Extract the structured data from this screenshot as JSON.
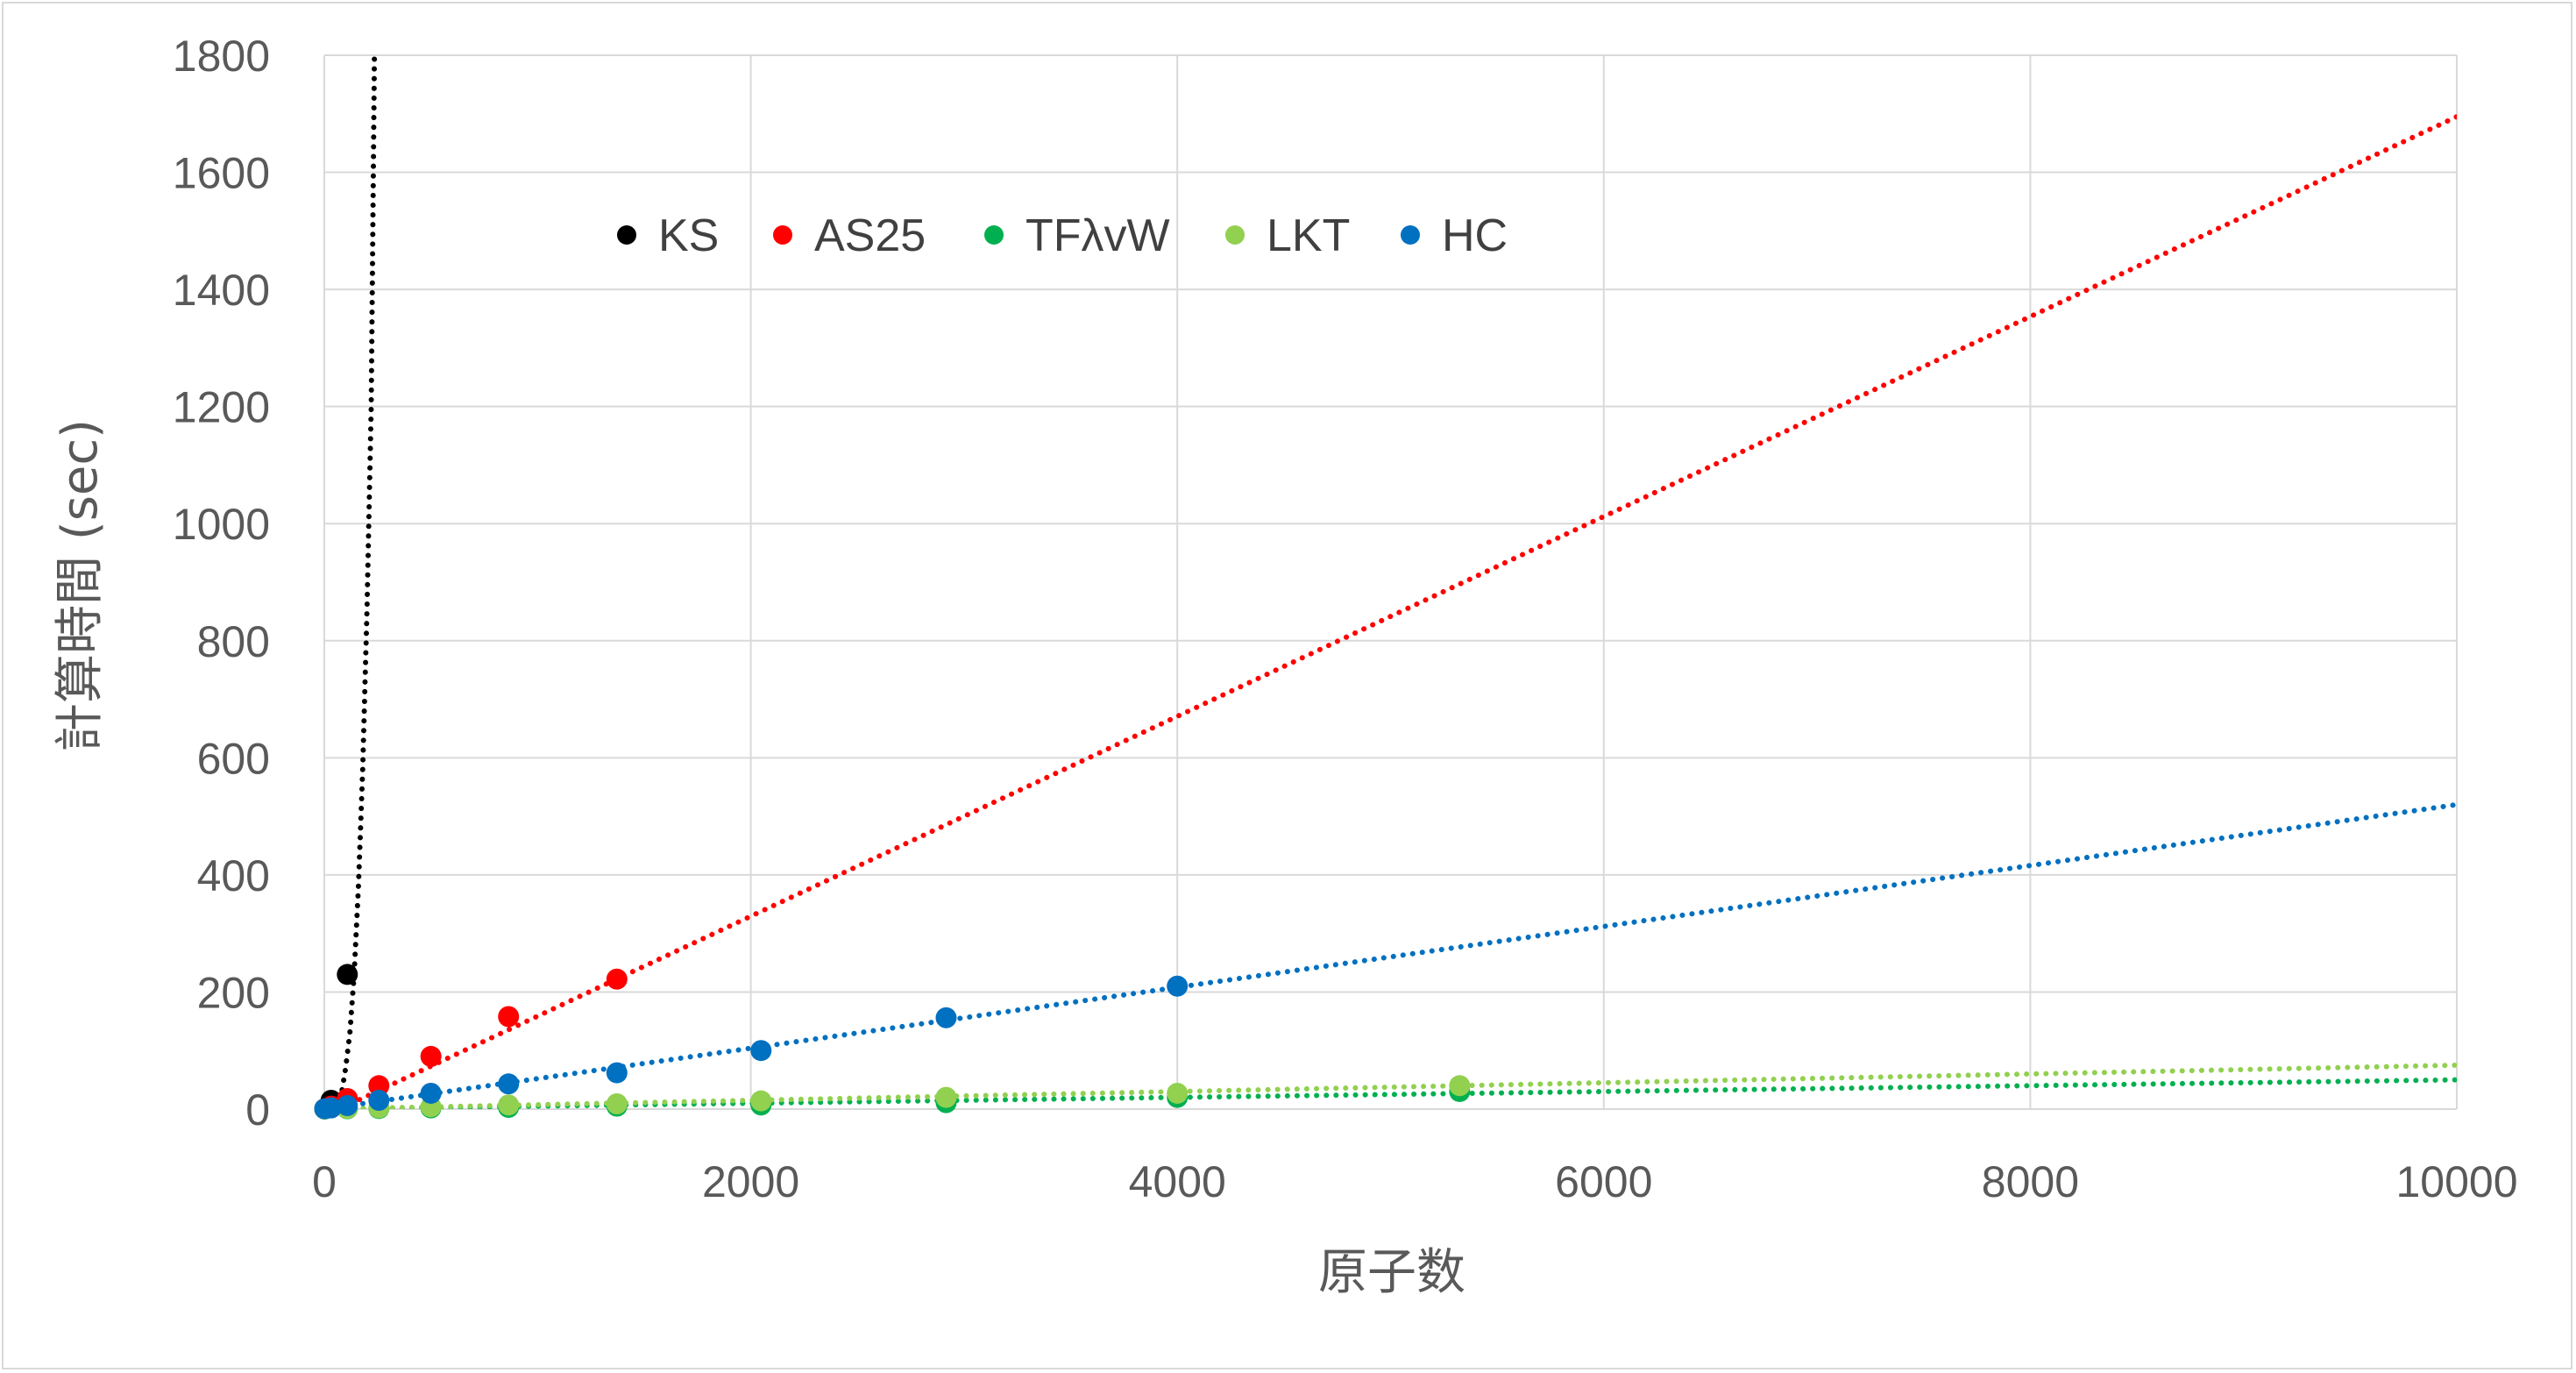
{
  "chart_data": {
    "type": "scatter",
    "title": "",
    "xlabel": "原子数",
    "ylabel": "計算時間 (sec)",
    "xlim": [
      0,
      10000
    ],
    "ylim": [
      0,
      1800
    ],
    "x_ticks": [
      "0",
      "2000",
      "4000",
      "6000",
      "8000",
      "10000"
    ],
    "y_ticks": [
      "0",
      "200",
      "400",
      "600",
      "800",
      "1000",
      "1200",
      "1400",
      "1600",
      "1800"
    ],
    "grid": true,
    "legend_position": "top-left-inside",
    "trendlines": "dotted",
    "series": [
      {
        "name": "KS",
        "color": "#000000",
        "points": [
          [
            2,
            0.5
          ],
          [
            8,
            2
          ],
          [
            32,
            15
          ],
          [
            108,
            230
          ]
        ],
        "trend": {
          "kind": "power",
          "x": [
            0,
            20,
            40,
            60,
            80,
            100,
            120,
            140,
            160,
            180,
            200,
            220,
            235
          ],
          "y": [
            0,
            0.3,
            3,
            10,
            25,
            70,
            130,
            230,
            380,
            580,
            850,
            1200,
            1800
          ]
        }
      },
      {
        "name": "AS25",
        "color": "#ff0000",
        "points": [
          [
            2,
            0.5
          ],
          [
            32,
            5
          ],
          [
            108,
            18
          ],
          [
            256,
            40
          ],
          [
            500,
            90
          ],
          [
            864,
            158
          ],
          [
            1372,
            222
          ]
        ],
        "trend": {
          "kind": "linear",
          "x": [
            0,
            10000
          ],
          "y": [
            -12,
            1695
          ]
        }
      },
      {
        "name": "TFλvW",
        "color": "#00b050",
        "points": [
          [
            2,
            0.1
          ],
          [
            108,
            0.5
          ],
          [
            256,
            1
          ],
          [
            500,
            2
          ],
          [
            864,
            3
          ],
          [
            1372,
            5
          ],
          [
            2048,
            7
          ],
          [
            2916,
            11
          ],
          [
            4000,
            20
          ],
          [
            5324,
            30
          ]
        ],
        "trend": {
          "kind": "linear",
          "x": [
            0,
            10000
          ],
          "y": [
            0,
            50
          ]
        }
      },
      {
        "name": "LKT",
        "color": "#92d050",
        "points": [
          [
            2,
            0.1
          ],
          [
            108,
            1
          ],
          [
            256,
            2
          ],
          [
            500,
            4
          ],
          [
            864,
            7
          ],
          [
            1372,
            9
          ],
          [
            2048,
            14
          ],
          [
            2916,
            20
          ],
          [
            4000,
            27
          ],
          [
            5324,
            40
          ]
        ],
        "trend": {
          "kind": "linear",
          "x": [
            0,
            10000
          ],
          "y": [
            0,
            75
          ]
        }
      },
      {
        "name": "HC",
        "color": "#0070c0",
        "points": [
          [
            2,
            0.5
          ],
          [
            32,
            2
          ],
          [
            108,
            6
          ],
          [
            256,
            15
          ],
          [
            500,
            27
          ],
          [
            864,
            43
          ],
          [
            1372,
            62
          ],
          [
            2048,
            100
          ],
          [
            2916,
            156
          ],
          [
            4000,
            210
          ]
        ],
        "trend": {
          "kind": "linear",
          "x": [
            0,
            10000
          ],
          "y": [
            0,
            520
          ]
        }
      }
    ]
  }
}
